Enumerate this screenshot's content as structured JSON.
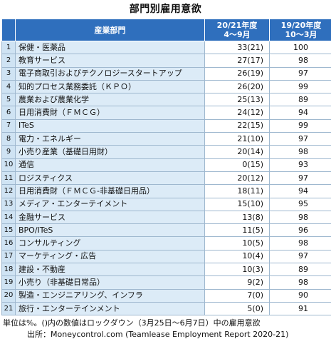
{
  "title": "部門別雇用意欲",
  "headers": {
    "sector": "産業部門",
    "col1_line1": "20/21年度",
    "col1_line2": "4～9月",
    "col2_line1": "19/20年度",
    "col2_line2": "10～3月"
  },
  "rows": [
    {
      "no": "1",
      "sector": "保健・医薬品",
      "v1": "33(21)",
      "v2": "100"
    },
    {
      "no": "2",
      "sector": "教育サービス",
      "v1": "27(17)",
      "v2": "98"
    },
    {
      "no": "3",
      "sector": "電子商取引およびテクノロジースタートアップ",
      "v1": "26(19)",
      "v2": "97"
    },
    {
      "no": "4",
      "sector": "知的プロセス業務委託（ＫＰＯ）",
      "v1": "26(20)",
      "v2": "99"
    },
    {
      "no": "5",
      "sector": "農業および農業化学",
      "v1": "25(13)",
      "v2": "89"
    },
    {
      "no": "6",
      "sector": "日用消費財（ＦＭＣＧ）",
      "v1": "24(12)",
      "v2": "94"
    },
    {
      "no": "7",
      "sector": "ITeS",
      "v1": "22(15)",
      "v2": "99"
    },
    {
      "no": "8",
      "sector": "電力・エネルギー",
      "v1": "21(10)",
      "v2": "97"
    },
    {
      "no": "9",
      "sector": "小売り産業（基礎日用財）",
      "v1": "20(14)",
      "v2": "98"
    },
    {
      "no": "10",
      "sector": "通信",
      "v1": "0(15)",
      "v2": "93"
    },
    {
      "no": "11",
      "sector": "ロジスティクス",
      "v1": "20(12)",
      "v2": "97"
    },
    {
      "no": "12",
      "sector": "日用消費財（ＦＭＣＧ-非基礎日用品）",
      "v1": "18(11)",
      "v2": "94"
    },
    {
      "no": "13",
      "sector": "メディア・エンターテイメント",
      "v1": "15(10)",
      "v2": "95"
    },
    {
      "no": "14",
      "sector": "金融サービス",
      "v1": "13(8)",
      "v2": "98"
    },
    {
      "no": "15",
      "sector": "BPO/ITeS",
      "v1": "11(5)",
      "v2": "96"
    },
    {
      "no": "16",
      "sector": "コンサルティング",
      "v1": "10(5)",
      "v2": "98"
    },
    {
      "no": "17",
      "sector": "マーケティング・広告",
      "v1": "10(4)",
      "v2": "97"
    },
    {
      "no": "18",
      "sector": "建設・不動産",
      "v1": "10(3)",
      "v2": "89"
    },
    {
      "no": "19",
      "sector": "小売り（非基礎日常品）",
      "v1": "9(2)",
      "v2": "98"
    },
    {
      "no": "20",
      "sector": "製造・エンジニアリング、インフラ",
      "v1": "7(0)",
      "v2": "90"
    },
    {
      "no": "21",
      "sector": "旅行・エンターテインメント",
      "v1": "5(0)",
      "v2": "91"
    }
  ],
  "note": "単位は%。()内の数値はロックダウン（3月25日～6月7日）中の雇用意欲",
  "source": "出所：Moneycontrol.com (Teamlease Employment Report 2020-21)"
}
